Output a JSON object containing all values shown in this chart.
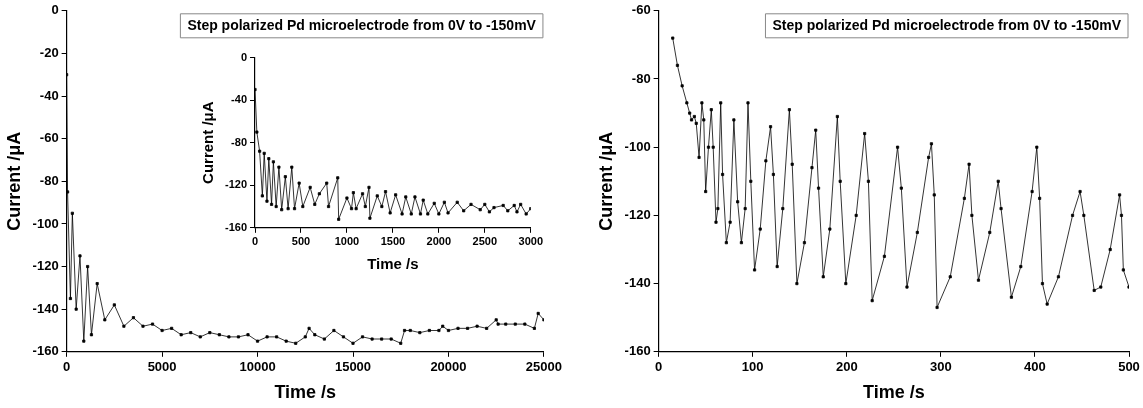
{
  "chart_data": [
    {
      "type": "line",
      "xlabel": "Time /s",
      "ylabel": "Current /μA",
      "annotations": [
        "Step polarized Pd microelectrode from 0V to -150mV"
      ],
      "xlim": [
        0,
        25000
      ],
      "xticks": [
        0,
        5000,
        10000,
        15000,
        20000,
        25000
      ],
      "ylim": [
        -160,
        0
      ],
      "yticks": [
        -160,
        -140,
        -120,
        -100,
        -80,
        -60,
        -40,
        -20,
        0
      ],
      "grid": false,
      "legend": false,
      "marker": "square",
      "line_style": "solid",
      "series": [
        {
          "color": "#000000",
          "x": [
            0,
            50,
            200,
            300,
            500,
            700,
            900,
            1100,
            1300,
            1600,
            2000,
            2500,
            3000,
            3500,
            4000,
            4500,
            5000,
            5500,
            6000,
            6500,
            7000,
            7500,
            8000,
            8500,
            9000,
            9500,
            10000,
            10500,
            11000,
            11500,
            12000,
            12500,
            12700,
            13000,
            13500,
            14000,
            14500,
            15000,
            15500,
            16000,
            16500,
            17000,
            17500,
            17700,
            18000,
            18500,
            19000,
            19500,
            19700,
            20000,
            20500,
            21000,
            21500,
            22000,
            22500,
            22600,
            23000,
            23500,
            24000,
            24500,
            24700,
            25000
          ],
          "values": [
            -30,
            -85,
            -135,
            -95,
            -140,
            -115,
            -155,
            -120,
            -152,
            -128,
            -145,
            -138,
            -148,
            -144,
            -148,
            -147,
            -150,
            -149,
            -152,
            -151,
            -153,
            -151,
            -152,
            -153,
            -153,
            -152,
            -155,
            -153,
            -153,
            -155,
            -156,
            -153,
            -149,
            -152,
            -154,
            -150,
            -153,
            -156,
            -153,
            -154,
            -154,
            -154,
            -156,
            -150,
            -150,
            -151,
            -150,
            -150,
            -148,
            -150,
            -149,
            -149,
            -148,
            -149,
            -145,
            -147,
            -147,
            -147,
            -147,
            -149,
            -142,
            -145
          ]
        }
      ]
    },
    {
      "type": "line",
      "xlabel": "Time /s",
      "ylabel": "Current /μA",
      "xlim": [
        0,
        3000
      ],
      "xticks": [
        0,
        500,
        1000,
        1500,
        2000,
        2500,
        3000
      ],
      "ylim": [
        -160,
        0
      ],
      "yticks": [
        -160,
        -120,
        -80,
        -40,
        0
      ],
      "grid": false,
      "legend": false,
      "marker": "square",
      "line_style": "solid",
      "series": [
        {
          "color": "#000000",
          "x": [
            0,
            20,
            50,
            80,
            100,
            130,
            150,
            180,
            200,
            230,
            260,
            290,
            330,
            360,
            400,
            430,
            480,
            520,
            600,
            650,
            700,
            780,
            800,
            900,
            910,
            1000,
            1050,
            1070,
            1100,
            1170,
            1200,
            1240,
            1250,
            1330,
            1380,
            1420,
            1470,
            1530,
            1600,
            1640,
            1700,
            1740,
            1800,
            1830,
            1880,
            1950,
            2000,
            2060,
            2100,
            2200,
            2270,
            2350,
            2450,
            2500,
            2550,
            2600,
            2700,
            2750,
            2820,
            2850,
            2890,
            2950,
            3000
          ],
          "values": [
            -30,
            -70,
            -88,
            -130,
            -90,
            -135,
            -95,
            -138,
            -98,
            -140,
            -103,
            -143,
            -112,
            -142,
            -103,
            -142,
            -118,
            -140,
            -122,
            -138,
            -128,
            -118,
            -140,
            -113,
            -152,
            -132,
            -142,
            -127,
            -142,
            -128,
            -140,
            -122,
            -151,
            -130,
            -140,
            -126,
            -146,
            -129,
            -147,
            -131,
            -147,
            -131,
            -147,
            -134,
            -147,
            -137,
            -147,
            -136,
            -146,
            -136,
            -144,
            -138,
            -143,
            -138,
            -145,
            -141,
            -139,
            -144,
            -139,
            -145,
            -138,
            -147,
            -142
          ]
        }
      ]
    },
    {
      "type": "line",
      "xlabel": "Time /s",
      "ylabel": "Current /μA",
      "annotations": [
        "Step polarized Pd microelectrode from 0V to -150mV"
      ],
      "xlim": [
        0,
        500
      ],
      "xticks": [
        0,
        100,
        200,
        300,
        400,
        500
      ],
      "ylim": [
        -160,
        -60
      ],
      "yticks": [
        -160,
        -140,
        -120,
        -100,
        -80,
        -60
      ],
      "grid": false,
      "legend": false,
      "marker": "square",
      "line_style": "solid",
      "series": [
        {
          "color": "#000000",
          "x": [
            15,
            20,
            25,
            30,
            33,
            35,
            38,
            40,
            43,
            46,
            48,
            50,
            53,
            56,
            58,
            61,
            63,
            66,
            68,
            72,
            76,
            80,
            84,
            88,
            92,
            95,
            98,
            102,
            108,
            114,
            119,
            122,
            126,
            132,
            139,
            142,
            147,
            155,
            163,
            167,
            170,
            175,
            182,
            190,
            193,
            199,
            210,
            219,
            223,
            227,
            240,
            254,
            258,
            264,
            275,
            287,
            290,
            293,
            296,
            310,
            325,
            330,
            333,
            340,
            352,
            361,
            364,
            375,
            385,
            397,
            402,
            405,
            408,
            413,
            425,
            440,
            448,
            452,
            463,
            470,
            480,
            490,
            492,
            494,
            500
          ],
          "values": [
            -68,
            -76,
            -82,
            -87,
            -90,
            -92,
            -91,
            -93,
            -103,
            -87,
            -92,
            -113,
            -100,
            -89,
            -100,
            -122,
            -118,
            -87,
            -108,
            -128,
            -122,
            -92,
            -116,
            -128,
            -118,
            -87,
            -110,
            -136,
            -124,
            -104,
            -94,
            -108,
            -135,
            -118,
            -89,
            -105,
            -140,
            -128,
            -106,
            -95,
            -112,
            -138,
            -124,
            -91,
            -110,
            -140,
            -120,
            -96,
            -110,
            -145,
            -132,
            -100,
            -112,
            -141,
            -125,
            -103,
            -99,
            -114,
            -147,
            -138,
            -115,
            -105,
            -120,
            -139,
            -125,
            -110,
            -118,
            -144,
            -135,
            -113,
            -100,
            -115,
            -140,
            -146,
            -138,
            -120,
            -113,
            -120,
            -142,
            -141,
            -130,
            -114,
            -120,
            -136,
            -141
          ]
        }
      ]
    }
  ]
}
